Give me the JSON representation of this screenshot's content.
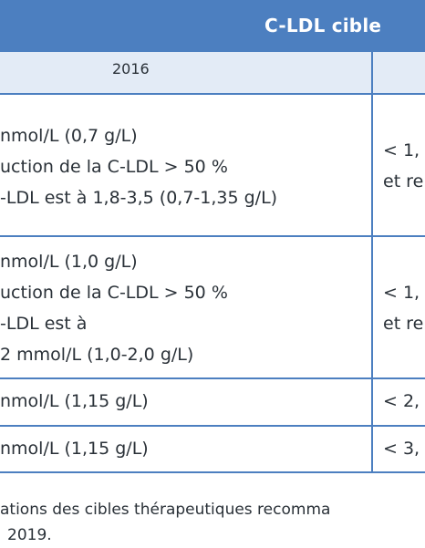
{
  "header": {
    "title": "C-LDL cible",
    "column_year": "2016"
  },
  "rows": [
    {
      "left_lines": [
        "nmol/L (0,7 g/L)",
        "uction de la C-LDL > 50 %",
        "-LDL est à 1,8-3,5 (0,7-1,35 g/L)"
      ],
      "right_lines": [
        "< 1,",
        "et re"
      ]
    },
    {
      "left_lines": [
        "nmol/L (1,0 g/L)",
        "uction de la C-LDL > 50 %",
        "-LDL est à",
        "2 mmol/L (1,0-2,0 g/L)"
      ],
      "right_lines": [
        "< 1,",
        "et re"
      ]
    },
    {
      "left_lines": [
        "nmol/L (1,15 g/L)"
      ],
      "right_lines": [
        "< 2,"
      ]
    },
    {
      "left_lines": [
        "nmol/L (1,15 g/L)"
      ],
      "right_lines": [
        "< 3,"
      ]
    }
  ],
  "caption": [
    "ations des cibles thérapeutiques recomma",
    "2019."
  ],
  "colors": {
    "accent": "#4c7fc0",
    "subheader_bg": "#e3ebf6",
    "text": "#2a3138"
  }
}
